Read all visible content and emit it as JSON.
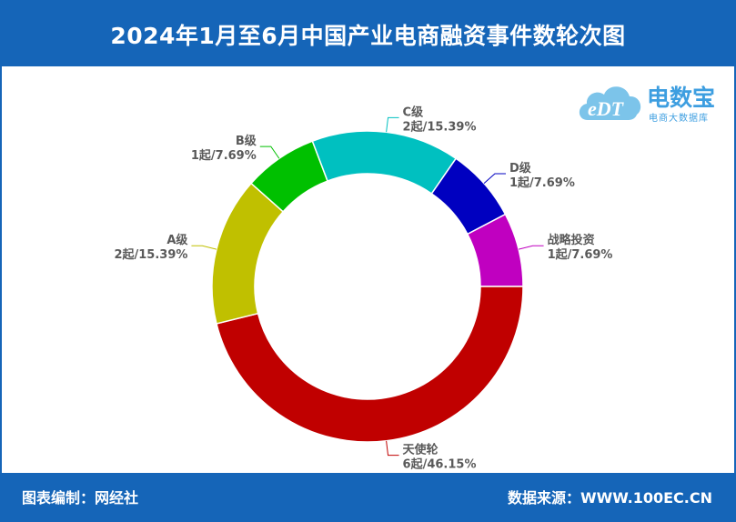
{
  "header": {
    "title": "2024年1月至6月中国产业电商融资事件数轮次图"
  },
  "footer": {
    "editor": "图表编制：网经社",
    "source": "数据来源：WWW.100EC.CN"
  },
  "logo": {
    "brand": "电数宝",
    "subtitle": "电商大数据库",
    "mark": "eDT"
  },
  "chart_data": {
    "type": "pie",
    "title": "2024年1月至6月中国产业电商融资事件数轮次图",
    "donut": true,
    "unit": "起",
    "slices": [
      {
        "name": "战略投资",
        "value": 1,
        "percent": "7.69%",
        "color": "#c000c0",
        "label": "1起/7.69%"
      },
      {
        "name": "天使轮",
        "value": 6,
        "percent": "46.15%",
        "color": "#c00000",
        "label": "6起/46.15%"
      },
      {
        "name": "A级",
        "value": 2,
        "percent": "15.39%",
        "color": "#c0c000",
        "label": "2起/15.39%"
      },
      {
        "name": "B级",
        "value": 1,
        "percent": "7.69%",
        "color": "#00c000",
        "label": "1起/7.69%"
      },
      {
        "name": "C级",
        "value": 2,
        "percent": "15.39%",
        "color": "#00c0c0",
        "label": "2起/15.39%"
      },
      {
        "name": "D级",
        "value": 1,
        "percent": "7.69%",
        "color": "#0000c0",
        "label": "1起/7.69%"
      }
    ]
  }
}
